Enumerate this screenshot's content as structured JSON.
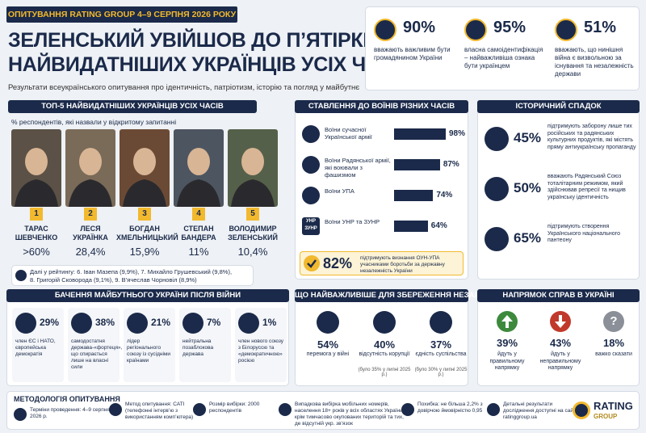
{
  "header": {
    "badge": "ОПИТУВАННЯ RATING GROUP 4–9 СЕРПНЯ 2026 РОКУ",
    "title": [
      "ЗЕЛЕНСЬКИЙ УВІЙШОВ ДО П’ЯТІРКИ",
      "НАЙВИДАТНІШИХ УКРАЇНЦІВ УСІХ ЧАСІВ"
    ],
    "subtitle": "Результати всеукраїнського опитування про ідентичність, патріотизм, історію та погляд у майбутнє"
  },
  "key_stats": [
    {
      "value": "90%",
      "text": "вважають важливим бути громадянином України"
    },
    {
      "value": "95%",
      "text": "власна самоідентифікація – найважливіша ознака бути українцем"
    },
    {
      "value": "51%",
      "text": "вважають, що нинішня війна є визвольною за існування та незалежність держави"
    }
  ],
  "top5": {
    "title": "ТОП-5 НАЙВИДАТНІШИХ УКРАЇНЦІВ УСІХ ЧАСІВ",
    "note": "% респондентів, які назвали у відкритому запитанні",
    "people": [
      {
        "rank": "1",
        "name": [
          "ТАРАС",
          "ШЕВЧЕНКО"
        ],
        "share": ">60%"
      },
      {
        "rank": "2",
        "name": [
          "ЛЕСЯ",
          "УКРАЇНКА"
        ],
        "share": "28,4%"
      },
      {
        "rank": "3",
        "name": [
          "БОГДАН",
          "ХМЕЛЬНИЦЬКИЙ"
        ],
        "share": "15,9%"
      },
      {
        "rank": "4",
        "name": [
          "СТЕПАН",
          "БАНДЕРА"
        ],
        "share": "11%"
      },
      {
        "rank": "5",
        "name": [
          "ВОЛОДИМИР",
          "ЗЕЛЕНСЬКИЙ"
        ],
        "share": "10,4%"
      }
    ],
    "more": [
      "Далі у рейтингу: 6. Іван Мазепа (9,9%), 7. Михайло Грушевський (9,8%),",
      "8. Григорій Сковорода (9,1%), 9. В’ячеслав Чорновіл (8,9%)"
    ]
  },
  "attitude": {
    "title": "СТАВЛЕННЯ ДО ВОЇНІВ РІЗНИХ ЧАСІВ",
    "items": [
      {
        "label": "Воїни сучасної Української армії",
        "value": 98,
        "value_label": "98%"
      },
      {
        "label": "Воїни Радянської армії, які воювали з фашизмом",
        "value": 87,
        "value_label": "87%"
      },
      {
        "label": "Воїни УПА",
        "value": 74,
        "value_label": "74%"
      },
      {
        "label": "Воїни УНР та ЗУНР",
        "value": 64,
        "value_label": "64%",
        "icon_text": [
          "УНР",
          "ЗУНР"
        ]
      }
    ],
    "highlight": {
      "value": "82%",
      "text": "підтримують визнання ОУН-УПА учасниками боротьби за державну незалежність України"
    }
  },
  "heritage": {
    "title": "ІСТОРИЧНИЙ СПАДОК",
    "items": [
      {
        "value": "45%",
        "text": "підтримують заборону лише тих російських та радянських культурних продуктів, які містять пряму антиукраїнську пропаганду"
      },
      {
        "value": "50%",
        "text": "вважають Радянський Союз тоталітарним режимом, який здійснював репресії та нищив українську ідентичність"
      },
      {
        "value": "65%",
        "text": "підтримують створення Українського національного пантеону"
      }
    ]
  },
  "future": {
    "title": "БАЧЕННЯ МАЙБУТНЬОГО УКРАЇНИ ПІСЛЯ ВІЙНИ",
    "items": [
      {
        "value": "29%",
        "text": "член ЄС і НАТО, європейська демократія"
      },
      {
        "value": "38%",
        "text": "самодостатня держава-«фортеця», що спирається лише на власні сили"
      },
      {
        "value": "21%",
        "text": "лідер регіонального союзу із сусідніми країнами"
      },
      {
        "value": "7%",
        "text": "нейтральна позаблокова держава"
      },
      {
        "value": "1%",
        "text": "член нового союзу з Білоруссю та «демократичною» росією"
      }
    ]
  },
  "independence": {
    "title": "ЩО НАЙВАЖЛИВІШЕ ДЛЯ ЗБЕРЕЖЕННЯ НЕЗАЛЕЖНОСТІ",
    "items": [
      {
        "value": "54%",
        "text": "перемога у війні"
      },
      {
        "value": "40%",
        "text": "відсутність корупції",
        "note": "(було 35% у липні 2025 р.)"
      },
      {
        "value": "37%",
        "text": "єдність суспільства",
        "note": "(було 30% у липні 2025 р.)"
      }
    ]
  },
  "direction": {
    "title": "НАПРЯМОК СПРАВ В УКРАЇНІ",
    "items": [
      {
        "value": "39%",
        "text": "йдуть у правильному напрямку"
      },
      {
        "value": "43%",
        "text": "йдуть у неправильному напрямку"
      },
      {
        "value": "18%",
        "text": "важко сказати",
        "icon_text": "?"
      }
    ]
  },
  "methodology": {
    "title": "МЕТОДОЛОГІЯ ОПИТУВАННЯ",
    "items": [
      "Терміни проведення: 4–9 серпня 2026 р.",
      "Метод опитування: CATI (телефонні інтерв’ю з використанням комп’ютера)",
      "Розмір вибірки: 2000 респондентів",
      "Випадкова вибірка мобільних номерів, населення 18+ років у всіх областях України, крім тимчасово окупованих територій та тих, де відсутній укр. зв’язок",
      "Похибка: не більша 2,2% з довірчою ймовірністю 0,95",
      "Детальні результати дослідження доступні на сайті ratinggroup.ua"
    ],
    "logo": [
      "RATING",
      "GROUP"
    ]
  }
}
